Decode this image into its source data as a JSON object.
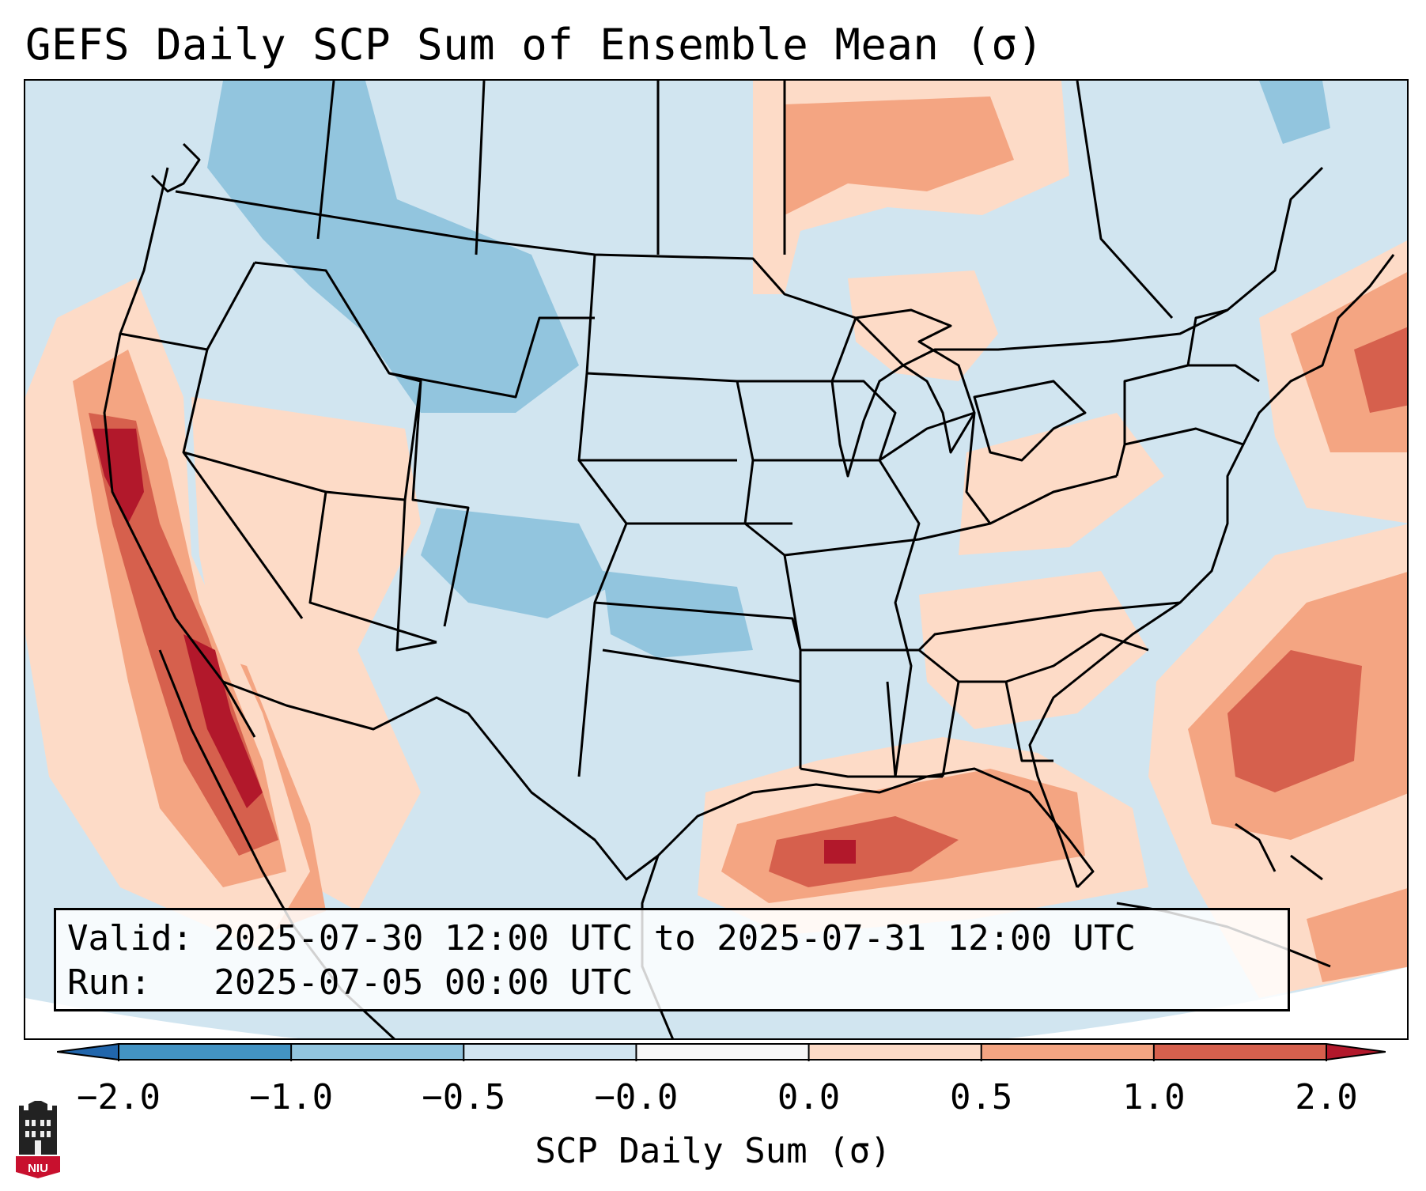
{
  "title": "GEFS Daily SCP Sum of Ensemble Mean (σ)",
  "map": {
    "projection_background": "#ffffff",
    "ocean_fill": "#d1e5f0",
    "land_default_fill": "#d1e5f0",
    "borders_color": "#000000",
    "region_labels": [],
    "anomaly_regions": [
      {
        "name": "pacific-coast-california",
        "level": 2.0
      },
      {
        "name": "gulf-of-mexico",
        "level": 1.0
      },
      {
        "name": "western-atlantic",
        "level": 1.0
      },
      {
        "name": "southern-canada",
        "level": 0.5
      },
      {
        "name": "northwest-interior",
        "level": -0.5
      },
      {
        "name": "central-rockies",
        "level": -0.5
      }
    ]
  },
  "info": {
    "valid_line": "Valid: 2025-07-30 12:00 UTC to 2025-07-31 12:00 UTC",
    "run_line": "Run:   2025-07-05 00:00 UTC"
  },
  "colorbar": {
    "label": "SCP Daily Sum (σ)",
    "extend": "both",
    "boundaries": [
      -2.0,
      -1.0,
      -0.5,
      -0.0,
      0.0,
      0.5,
      1.0,
      2.0
    ],
    "tick_labels": [
      "−2.0",
      "−1.0",
      "−0.5",
      "−0.0",
      "0.0",
      "0.5",
      "1.0",
      "2.0"
    ],
    "colors": [
      "#2166ac",
      "#4393c3",
      "#92c5de",
      "#d1e5f0",
      "#f7f7f7",
      "#fddbc7",
      "#f4a582",
      "#d6604d",
      "#b2182b"
    ]
  },
  "logo": {
    "text": "NIU",
    "color": "#c8102e"
  }
}
